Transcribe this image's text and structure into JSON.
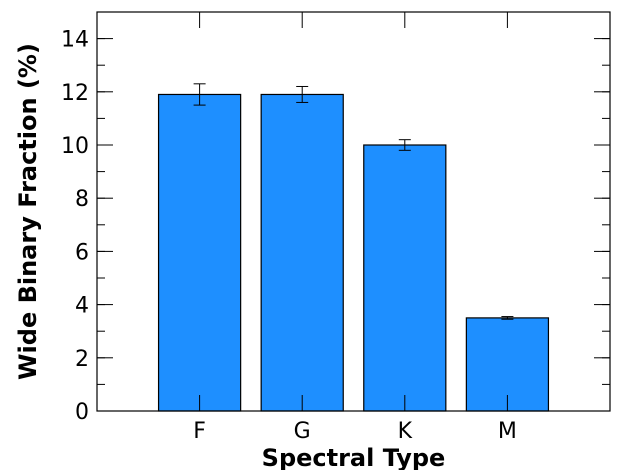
{
  "chart_data": {
    "type": "bar",
    "title": "",
    "xlabel": "Spectral Type",
    "ylabel": "Wide Binary Fraction (%)",
    "categories": [
      "F",
      "G",
      "K",
      "M"
    ],
    "values": [
      11.9,
      11.9,
      10.0,
      3.5
    ],
    "error_low": [
      0.4,
      0.3,
      0.2,
      0.05
    ],
    "error_high": [
      0.4,
      0.3,
      0.2,
      0.05
    ],
    "xlim": [
      -1,
      4
    ],
    "ylim": [
      0,
      15
    ],
    "yticks": [
      "0",
      "2",
      "4",
      "6",
      "8",
      "10",
      "12",
      "14"
    ],
    "ytick_values": [
      0,
      2,
      4,
      6,
      8,
      10,
      12,
      14
    ],
    "yminor_step": 1,
    "grid": false,
    "legend": "none",
    "bar_color": "#1E8FFF",
    "edge_color": "#000000"
  }
}
